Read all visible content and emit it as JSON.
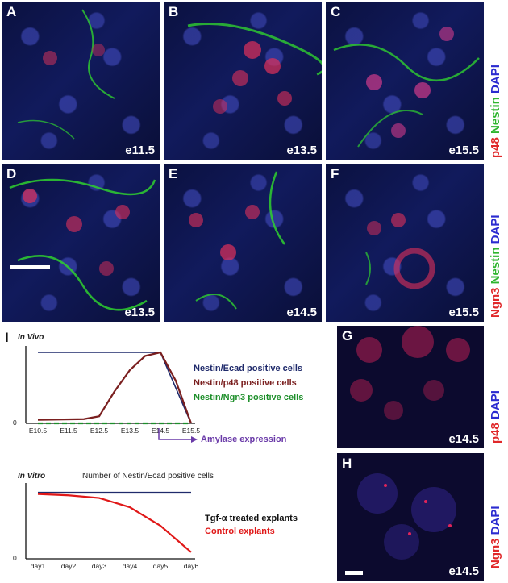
{
  "panels": [
    {
      "letter": "A",
      "stage": "e11.5",
      "green": "sparse",
      "red": "low"
    },
    {
      "letter": "B",
      "stage": "e13.5",
      "green": "medium",
      "red": "high"
    },
    {
      "letter": "C",
      "stage": "e15.5",
      "green": "high",
      "red": "high"
    },
    {
      "letter": "D",
      "stage": "e13.5",
      "green": "high",
      "red": "medium"
    },
    {
      "letter": "E",
      "stage": "e14.5",
      "green": "medium",
      "red": "medium"
    },
    {
      "letter": "F",
      "stage": "e15.5",
      "green": "low",
      "red": "medium"
    },
    {
      "letter": "G",
      "stage": "e14.5"
    },
    {
      "letter": "H",
      "stage": "e14.5"
    }
  ],
  "row_labels": {
    "top": {
      "p1": "p48",
      "p2": "Nestin",
      "p3": "DAPI"
    },
    "mid": {
      "p1": "Ngn3",
      "p2": "Nestin",
      "p3": "DAPI"
    },
    "g": {
      "p1": "p48",
      "p3": "DAPI"
    },
    "h": {
      "p1": "Ngn3",
      "p3": "DAPI"
    }
  },
  "graph": {
    "letter": "I",
    "invivo_title": "In Vivo",
    "invitro_title": "In Vitro",
    "invitro_subtitle": "Number of Nestin/Ecad positive cells",
    "zero": "0",
    "amylase": "Amylase expression",
    "legend_invivo": [
      "Nestin/Ecad positive cells",
      "Nestin/p48 positive cells",
      "Nestin/Ngn3 positive cells"
    ],
    "legend_invitro": [
      "Tgf-α treated explants",
      "Control explants"
    ],
    "colors": {
      "navy": "#1f2a6b",
      "darkred": "#7a1f1f",
      "green": "#1e8f2b",
      "red": "#e01818",
      "purple": "#6a3aa8"
    }
  },
  "chart_data": [
    {
      "type": "line",
      "title": "In Vivo",
      "categories": [
        "E10.5",
        "E11.5",
        "E12.5",
        "E13.5",
        "E14.5",
        "E15.5"
      ],
      "series": [
        {
          "name": "Nestin/Ecad positive cells",
          "x": [
            10.5,
            14.5,
            15.5
          ],
          "values": [
            1,
            1,
            0
          ]
        },
        {
          "name": "Nestin/p48 positive cells",
          "x": [
            10.5,
            12.0,
            12.5,
            13.0,
            13.5,
            14.0,
            14.5,
            15.0,
            15.5
          ],
          "values": [
            0.05,
            0.06,
            0.1,
            0.45,
            0.75,
            0.95,
            1,
            0.6,
            0
          ]
        },
        {
          "name": "Nestin/Ngn3 positive cells",
          "x": [
            10.5,
            15.5
          ],
          "values": [
            0,
            0
          ]
        }
      ]
    },
    {
      "type": "line",
      "title": "In Vitro",
      "categories": [
        "day1",
        "day2",
        "day3",
        "day4",
        "day5",
        "day6"
      ],
      "series": [
        {
          "name": "Tgf-α treated explants",
          "x": [
            1,
            6
          ],
          "values": [
            1,
            1
          ]
        },
        {
          "name": "Control explants",
          "x": [
            1,
            2,
            3,
            4,
            5,
            6
          ],
          "values": [
            0.98,
            0.96,
            0.92,
            0.78,
            0.5,
            0.1
          ]
        }
      ]
    }
  ]
}
